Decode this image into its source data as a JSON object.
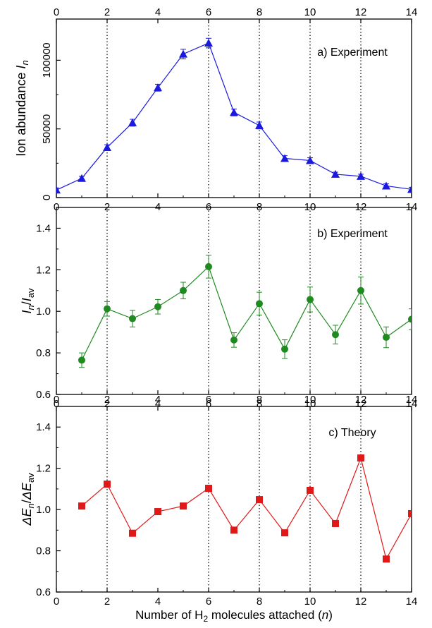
{
  "chart_data": [
    {
      "type": "line",
      "panel": "a",
      "annotation": "a) Experiment",
      "ylabel_main": "Ion abundance ",
      "ylabel_var": "I",
      "ylabel_sub": "n",
      "xlim": [
        0,
        14
      ],
      "ylim": [
        0,
        130000
      ],
      "yticks": [
        0,
        50000,
        100000
      ],
      "ytick_labels": [
        "0",
        "50000",
        "100000"
      ],
      "xticks": [
        0,
        2,
        4,
        6,
        8,
        10,
        12,
        14
      ],
      "top_ticks": [
        0,
        2,
        4,
        6,
        8,
        10,
        12,
        14
      ],
      "vlines": [
        2,
        6,
        8,
        10,
        12
      ],
      "marker": "triangle",
      "color": "#1a1adf",
      "x": [
        0,
        1,
        2,
        3,
        4,
        5,
        6,
        7,
        8,
        9,
        10,
        11,
        12,
        13,
        14
      ],
      "values": [
        5500,
        14000,
        36500,
        54500,
        80000,
        104500,
        112500,
        62000,
        52500,
        28500,
        27000,
        17000,
        15500,
        8500,
        6000
      ],
      "errors": [
        1500,
        1500,
        2000,
        2500,
        2500,
        3500,
        3500,
        2500,
        2500,
        2000,
        2000,
        1500,
        1500,
        1500,
        1500
      ]
    },
    {
      "type": "line",
      "panel": "b",
      "annotation": "b) Experiment",
      "ylabel_num": "I",
      "ylabel_num_sub": "n",
      "ylabel_den": "I",
      "ylabel_den_sub": "av",
      "xlim": [
        0,
        14
      ],
      "ylim": [
        0.6,
        1.5
      ],
      "yticks": [
        0.6,
        0.8,
        1.0,
        1.2,
        1.4
      ],
      "ytick_labels": [
        "0.6",
        "0.8",
        "1.0",
        "1.2",
        "1.4"
      ],
      "xticks": [
        0,
        2,
        4,
        6,
        8,
        10,
        12,
        14
      ],
      "top_ticks": [],
      "vlines": [
        2,
        6,
        8,
        10,
        12
      ],
      "marker": "circle",
      "color": "#1f8a1f",
      "x": [
        1,
        2,
        3,
        4,
        5,
        6,
        7,
        8,
        9,
        10,
        11,
        12,
        13,
        14
      ],
      "values": [
        0.765,
        1.012,
        0.965,
        1.022,
        1.1,
        1.215,
        0.862,
        1.037,
        0.818,
        1.057,
        0.888,
        1.1,
        0.875,
        0.962
      ],
      "errors": [
        0.035,
        0.035,
        0.04,
        0.035,
        0.04,
        0.055,
        0.035,
        0.055,
        0.045,
        0.06,
        0.045,
        0.065,
        0.05,
        0.05
      ]
    },
    {
      "type": "line",
      "panel": "c",
      "annotation": "c) Theory",
      "ylabel_num": "ΔE",
      "ylabel_num_sub": "n",
      "ylabel_den": "ΔE",
      "ylabel_den_sub": "av",
      "xlabel_pre": "Number of H",
      "xlabel_sub": "2",
      "xlabel_post": " molecules attached (",
      "xlabel_var": "n",
      "xlabel_end": ")",
      "xlim": [
        0,
        14
      ],
      "ylim": [
        0.6,
        1.5
      ],
      "yticks": [
        0.6,
        0.8,
        1.0,
        1.2,
        1.4
      ],
      "ytick_labels": [
        "0.6",
        "0.8",
        "1.0",
        "1.2",
        "1.4"
      ],
      "xticks": [
        0,
        2,
        4,
        6,
        8,
        10,
        12,
        14
      ],
      "top_ticks": [
        0,
        2,
        4,
        6,
        8,
        10,
        12,
        14
      ],
      "vlines": [
        2,
        6,
        8,
        10,
        12
      ],
      "marker": "square",
      "color": "#e01818",
      "x": [
        1,
        2,
        3,
        4,
        5,
        6,
        7,
        8,
        9,
        10,
        11,
        12,
        13,
        14
      ],
      "values": [
        1.017,
        1.123,
        0.885,
        0.99,
        1.017,
        1.103,
        0.9,
        1.048,
        0.887,
        1.093,
        0.932,
        1.25,
        0.76,
        0.98
      ],
      "errors": []
    }
  ],
  "tick_labels_x": [
    "0",
    "2",
    "4",
    "6",
    "8",
    "10",
    "12",
    "14"
  ]
}
